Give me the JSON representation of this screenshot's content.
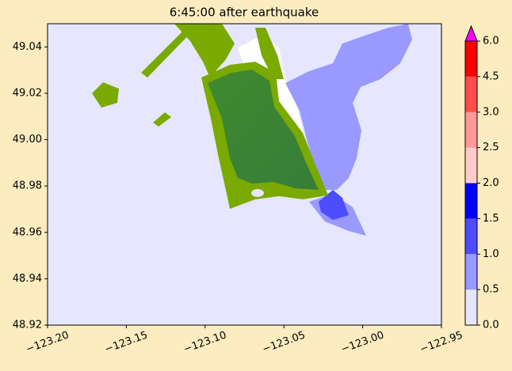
{
  "chart_data": {
    "type": "map",
    "title": "6:45:00 after earthquake",
    "xlim": [
      -123.2,
      -122.95
    ],
    "xticks": [
      {
        "value": -123.2,
        "label": "−123.20"
      },
      {
        "value": -123.15,
        "label": "−123.15"
      },
      {
        "value": -123.1,
        "label": "−123.10"
      },
      {
        "value": -123.05,
        "label": "−123.05"
      },
      {
        "value": -123.0,
        "label": "−123.00"
      },
      {
        "value": -122.95,
        "label": "−122.95"
      }
    ],
    "ylim": [
      48.92,
      49.05
    ],
    "yticks": [
      48.92,
      48.94,
      48.96,
      48.98,
      {
        "value": 49.0,
        "label": "49.00"
      },
      49.02,
      49.04
    ],
    "colorbar": {
      "ticks": [
        {
          "value": 0,
          "label": "0.0"
        },
        0.5,
        {
          "value": 1,
          "label": "1.0"
        },
        1.5,
        {
          "value": 2,
          "label": "2.0"
        },
        2.5,
        {
          "value": 3,
          "label": "3.0"
        },
        4.5,
        {
          "value": 6,
          "label": "6.0"
        }
      ],
      "colors": [
        "#e6e6ff",
        "#9999ff",
        "#4d4dff",
        "#0000ff",
        "#ffcccc",
        "#ff9999",
        "#ff4d4d",
        "#ff0000"
      ],
      "extend_color": "#ff00ff"
    }
  }
}
